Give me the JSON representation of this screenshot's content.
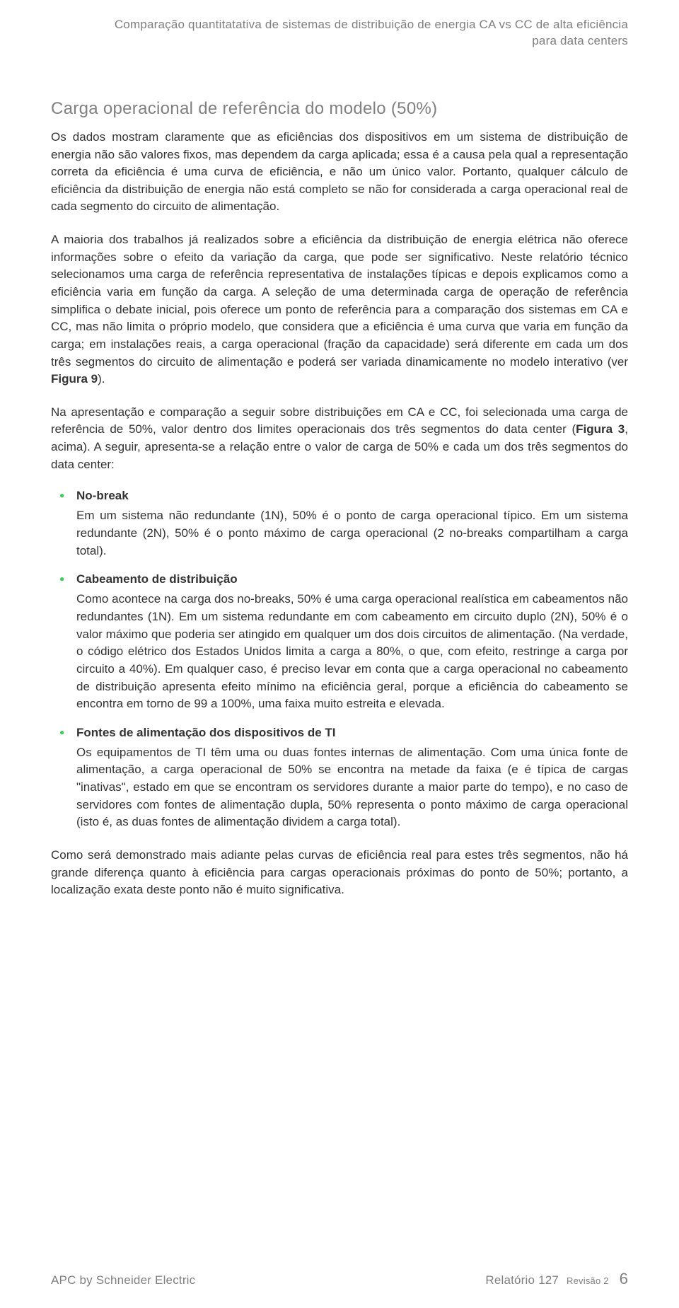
{
  "colors": {
    "text_body": "#333333",
    "text_muted": "#808080",
    "bullet_accent": "#3dcd58",
    "background": "#ffffff"
  },
  "typography": {
    "body_fontsize_pt": 13,
    "heading_fontsize_pt": 18,
    "header_fontsize_pt": 13,
    "line_height": 1.45
  },
  "header": {
    "line1": "Comparação quantitatativa de sistemas de distribuição de energia CA vs CC de alta eficiência",
    "line2": "para data centers"
  },
  "section": {
    "title": "Carga operacional de referência do modelo (50%)",
    "paragraphs": [
      "Os dados mostram claramente que as eficiências dos dispositivos em um sistema de distribuição de energia não são valores fixos, mas dependem da carga aplicada; essa é a causa pela qual a representação correta da eficiência é uma curva de eficiência, e não um único valor.  Portanto, qualquer cálculo de eficiência da distribuição de energia não está completo se não for considerada a carga operacional real de cada segmento do circuito de alimentação.",
      "A maioria dos trabalhos já realizados sobre a eficiência da distribuição de energia elétrica não oferece informações sobre o efeito da variação da carga, que pode ser significativo. Neste relatório técnico selecionamos uma carga de referência representativa de instalações típicas e depois explicamos como a eficiência varia em função da carga.  A seleção de uma determinada carga de operação de referência simplifica o debate inicial, pois oferece um ponto de referência para a comparação dos sistemas em CA e CC, mas não limita o próprio modelo, que considera que a eficiência é uma curva que varia em função da carga; em instalações reais, a carga operacional (fração da capacidade) será diferente em cada um dos três segmentos do circuito de alimentação e poderá ser variada dinamicamente no modelo interativo (ver ",
      "Na apresentação e comparação a seguir sobre distribuições em CA e CC, foi selecionada uma carga de referência de 50%, valor dentro dos limites operacionais dos três segmentos do data center (",
      ", acima).  A seguir, apresenta-se a relação entre o valor de carga de 50% e cada um dos três segmentos do data center:"
    ],
    "fig9_label": "Figura 9",
    "fig3_label": "Figura 3",
    "closing_paragraph": "Como será demonstrado mais adiante pelas curvas de eficiência real para estes três segmentos, não há grande diferença quanto à eficiência para cargas operacionais próximas do ponto de 50%; portanto, a localização exata deste ponto não é muito significativa."
  },
  "bullets": [
    {
      "title": "No-break",
      "body": "Em um sistema não redundante (1N), 50% é o ponto de carga operacional típico.  Em um sistema redundante (2N), 50% é o ponto máximo de carga operacional (2 no-breaks compartilham a carga total)."
    },
    {
      "title": "Cabeamento de distribuição",
      "body": "Como acontece na carga dos no-breaks, 50% é uma carga operacional realística em cabeamentos não redundantes (1N).  Em um sistema redundante em com cabeamento em circuito duplo (2N), 50% é o valor máximo que poderia ser atingido em qualquer um dos dois circuitos de alimentação.  (Na verdade, o código elétrico dos Estados Unidos limita a carga a 80%, o que, com efeito, restringe a carga por circuito a 40%).  Em qualquer caso, é preciso levar em conta que a carga operacional no cabeamento de distribuição apresenta efeito mínimo na eficiência geral, porque a eficiência do cabeamento se encontra em torno de 99 a 100%, uma faixa muito estreita e elevada."
    },
    {
      "title": "Fontes de alimentação dos dispositivos de TI",
      "body": "Os equipamentos de TI têm uma ou duas fontes internas de alimentação.  Com uma única fonte de alimentação, a carga operacional de 50% se encontra na metade da faixa (e é típica de cargas \"inativas\", estado em que se encontram os servidores durante a maior parte do tempo), e no caso de servidores com fontes de alimentação dupla, 50% representa o ponto máximo de carga operacional (isto é, as duas fontes de alimentação dividem a carga total)."
    }
  ],
  "footer": {
    "left": "APC by Schneider Electric",
    "doc_label": "Relatório 127",
    "revision_label": "Revisão 2",
    "page_number": "6"
  }
}
